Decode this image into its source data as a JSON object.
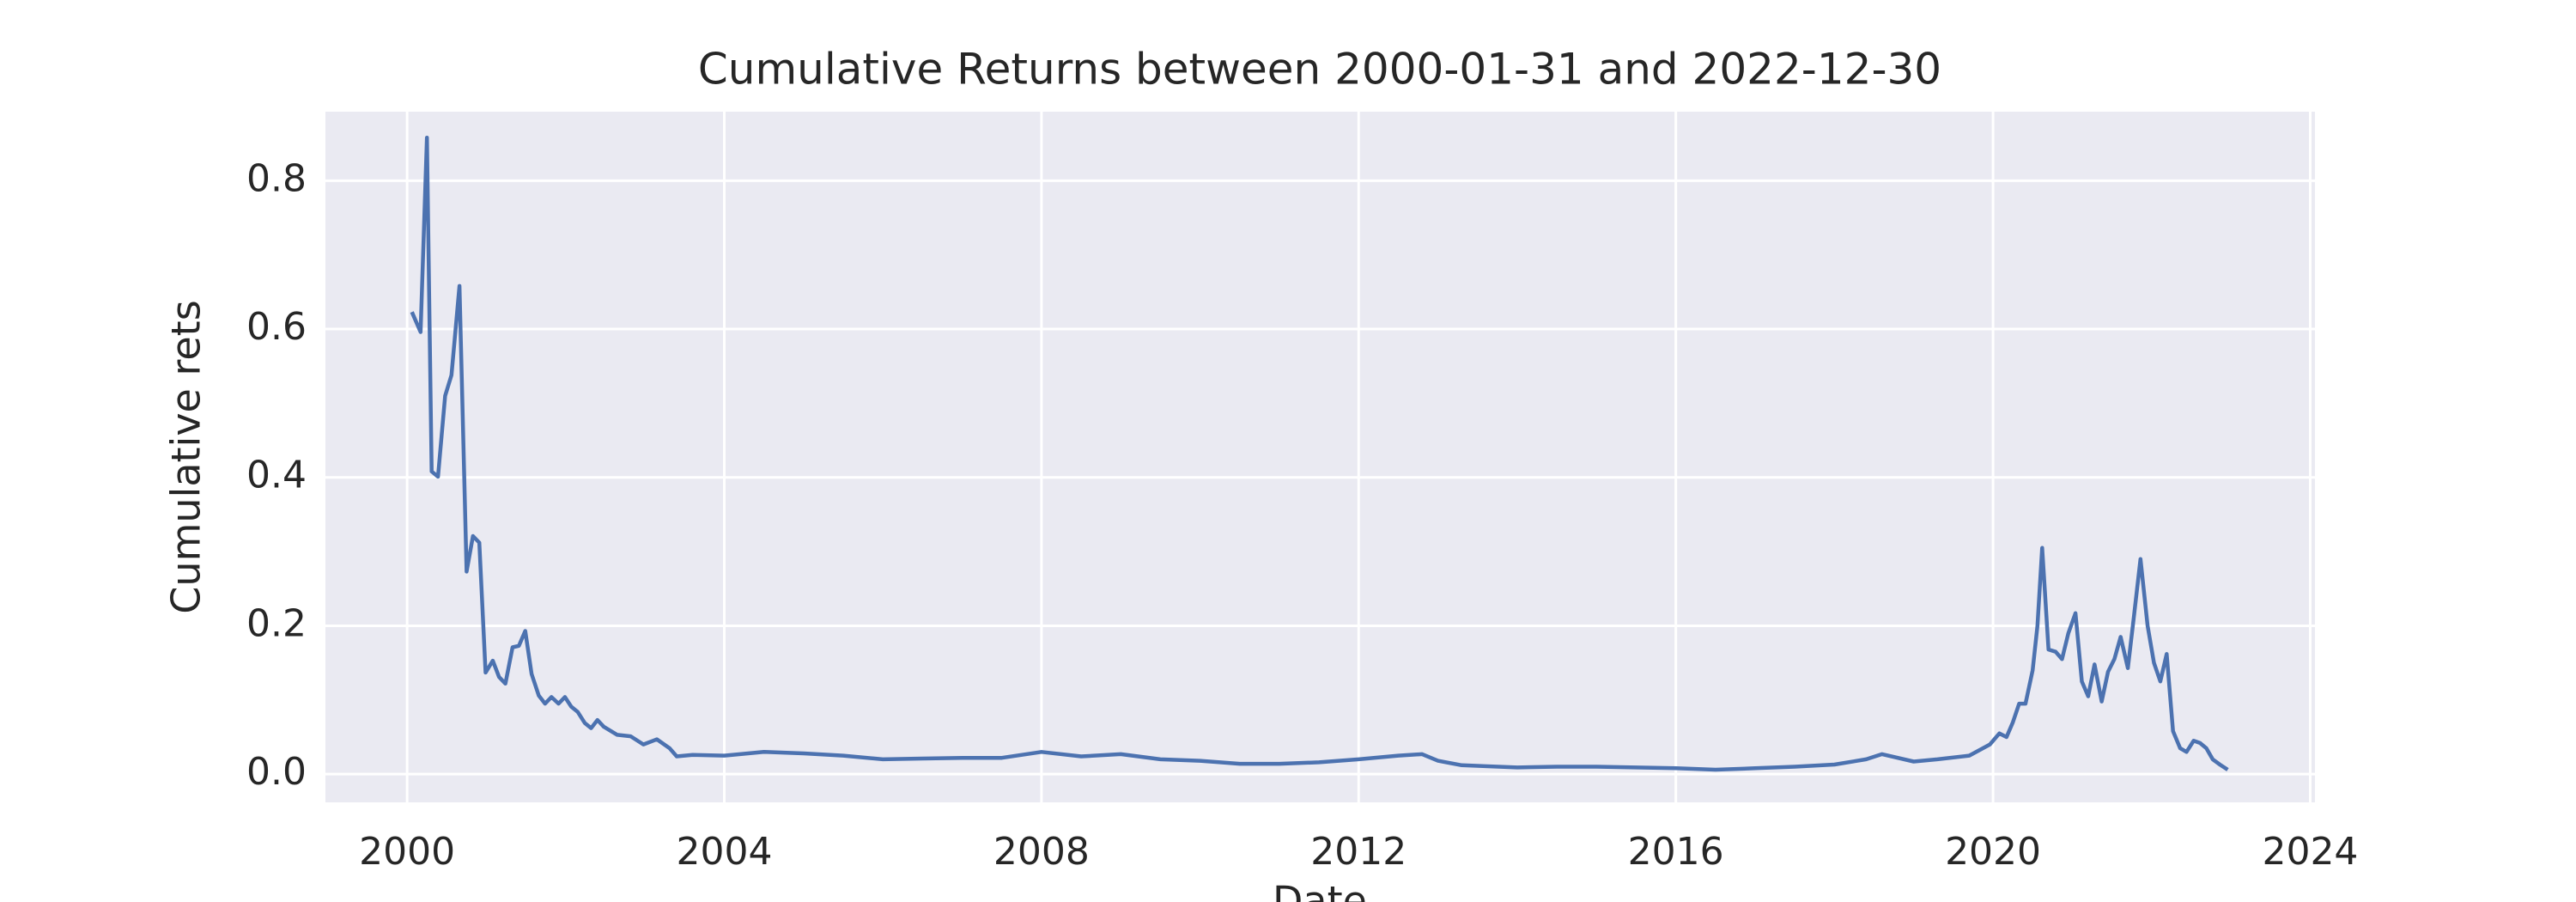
{
  "chart_data": {
    "type": "line",
    "title": "Cumulative Returns between 2000-01-31 and 2022-12-30",
    "xlabel": "Date",
    "ylabel": "Cumulative rets",
    "x": [
      2000.06,
      2000.17,
      2000.25,
      2000.31,
      2000.39,
      2000.48,
      2000.56,
      2000.66,
      2000.75,
      2000.83,
      2000.91,
      2000.99,
      2001.08,
      2001.16,
      2001.24,
      2001.33,
      2001.41,
      2001.49,
      2001.57,
      2001.66,
      2001.74,
      2001.82,
      2001.91,
      2001.99,
      2002.07,
      2002.15,
      2002.24,
      2002.32,
      2002.4,
      2002.48,
      2002.65,
      2002.82,
      2002.98,
      2003.15,
      2003.31,
      2003.4,
      2003.6,
      2004.0,
      2004.5,
      2005.0,
      2005.5,
      2006.0,
      2006.5,
      2007.0,
      2007.5,
      2008.0,
      2008.5,
      2009.0,
      2009.5,
      2010.0,
      2010.5,
      2011.0,
      2011.5,
      2012.0,
      2012.5,
      2012.8,
      2013.0,
      2013.3,
      2014.0,
      2014.5,
      2015.0,
      2015.5,
      2016.0,
      2016.5,
      2017.0,
      2017.5,
      2018.0,
      2018.4,
      2018.6,
      2019.0,
      2019.3,
      2019.7,
      2019.96,
      2020.08,
      2020.17,
      2020.25,
      2020.33,
      2020.41,
      2020.5,
      2020.56,
      2020.62,
      2020.7,
      2020.79,
      2020.87,
      2020.95,
      2021.04,
      2021.12,
      2021.2,
      2021.28,
      2021.37,
      2021.45,
      2021.53,
      2021.61,
      2021.7,
      2021.78,
      2021.86,
      2021.95,
      2022.03,
      2022.11,
      2022.19,
      2022.27,
      2022.36,
      2022.44,
      2022.53,
      2022.61,
      2022.69,
      2022.77,
      2022.86,
      2022.96
    ],
    "series": [
      {
        "color": "#4c72b0",
        "values": [
          0.623,
          0.596,
          0.858,
          0.408,
          0.401,
          0.51,
          0.538,
          0.658,
          0.273,
          0.321,
          0.312,
          0.137,
          0.153,
          0.131,
          0.122,
          0.171,
          0.173,
          0.193,
          0.135,
          0.106,
          0.095,
          0.104,
          0.095,
          0.104,
          0.091,
          0.084,
          0.069,
          0.062,
          0.073,
          0.064,
          0.053,
          0.051,
          0.04,
          0.047,
          0.035,
          0.024,
          0.026,
          0.025,
          0.03,
          0.028,
          0.025,
          0.02,
          0.021,
          0.022,
          0.022,
          0.03,
          0.024,
          0.027,
          0.02,
          0.018,
          0.014,
          0.014,
          0.016,
          0.02,
          0.025,
          0.027,
          0.018,
          0.012,
          0.009,
          0.01,
          0.01,
          0.009,
          0.008,
          0.006,
          0.008,
          0.01,
          0.013,
          0.02,
          0.027,
          0.017,
          0.02,
          0.025,
          0.04,
          0.055,
          0.05,
          0.07,
          0.095,
          0.095,
          0.14,
          0.2,
          0.305,
          0.168,
          0.165,
          0.155,
          0.19,
          0.217,
          0.125,
          0.105,
          0.148,
          0.098,
          0.138,
          0.155,
          0.185,
          0.143,
          0.215,
          0.29,
          0.2,
          0.15,
          0.125,
          0.162,
          0.058,
          0.035,
          0.03,
          0.045,
          0.042,
          0.035,
          0.02,
          0.013,
          0.006
        ]
      }
    ],
    "xlim": [
      1998.97,
      2024.06
    ],
    "xticks": [
      2000,
      2004,
      2008,
      2012,
      2016,
      2020,
      2024
    ],
    "ylim": [
      -0.038,
      0.893
    ],
    "yticks": [
      0.0,
      0.2,
      0.4,
      0.6,
      0.8
    ],
    "grid": true
  }
}
